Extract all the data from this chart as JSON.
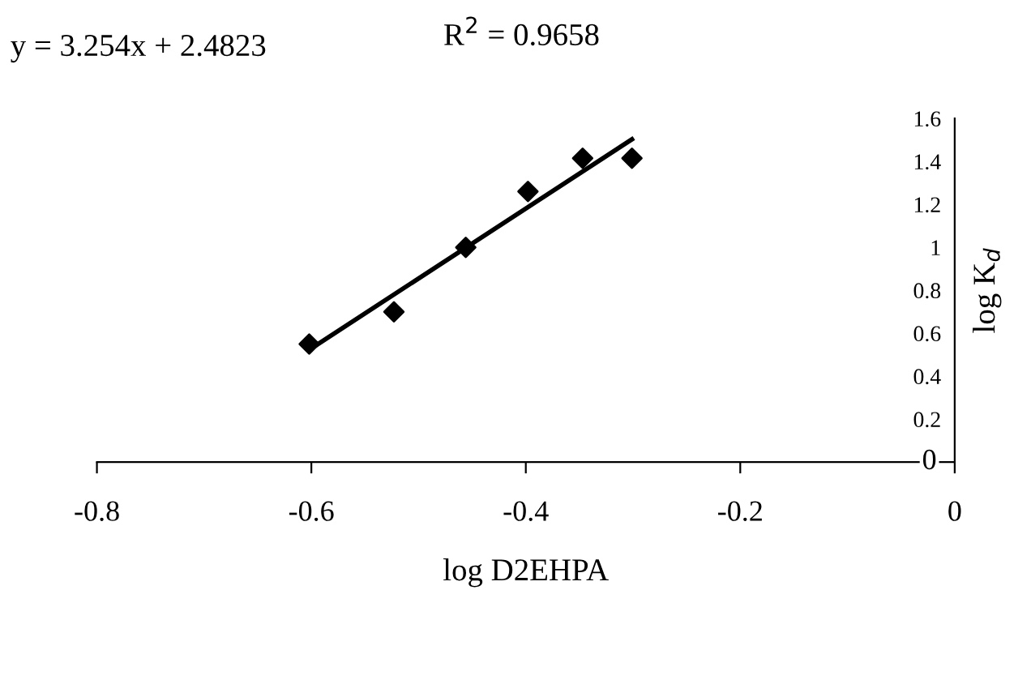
{
  "chart_data": {
    "type": "scatter",
    "xlabel": "log D2EHPA",
    "ylabel": "log K$_{d}$",
    "annotations": [
      "y = 3.254x + 2.4823",
      "R$^{2}$ = 0.9658"
    ],
    "series": [
      {
        "color": "#000000",
        "marker": "diamond",
        "x": [
          -0.602,
          -0.523,
          -0.456,
          -0.398,
          -0.347,
          -0.301
        ],
        "values": [
          0.55,
          0.7,
          1.0,
          1.26,
          1.415,
          1.415
        ]
      },
      {
        "type": "line",
        "color": "#000000",
        "marker": "none",
        "line_style": "solid",
        "x": [
          -0.602,
          -0.301
        ],
        "values": [
          0.523,
          1.503
        ]
      }
    ],
    "xlim": [
      -0.8,
      0
    ],
    "ylim": [
      0,
      1.6
    ],
    "xticks": [
      -0.8,
      -0.6,
      -0.4,
      -0.2,
      0
    ],
    "yticks": [
      0,
      0.2,
      0.4,
      0.6,
      0.8,
      1,
      1.2,
      1.4,
      1.6
    ],
    "grid": false,
    "legend": false
  }
}
